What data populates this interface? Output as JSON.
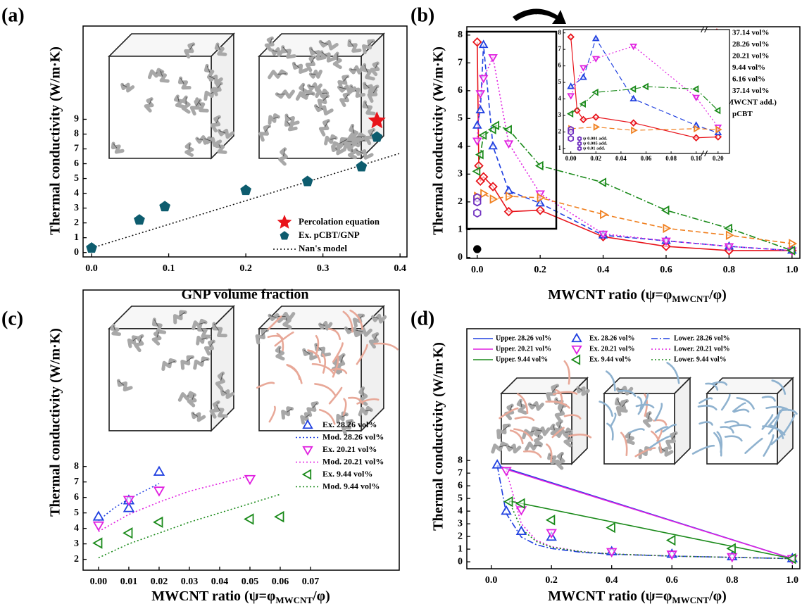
{
  "chart_data": [
    {
      "type": "scatter",
      "panel_label": "(a)",
      "xlabel": "GNP volume fraction",
      "ylabel": "Thermal conductivity (W/m·K)",
      "xlim": [
        -0.011,
        0.409
      ],
      "ylim": [
        -0.3,
        15.3
      ],
      "xticks": [
        {
          "value": 0,
          "label": "0.0"
        },
        {
          "value": 0.1,
          "label": "0.1"
        },
        {
          "value": 0.2,
          "label": "0.2"
        },
        {
          "value": 0.3,
          "label": "0.3"
        },
        {
          "value": 0.4,
          "label": "0.4"
        }
      ],
      "yticks": [
        0,
        1,
        2,
        3,
        4,
        5,
        6,
        7,
        8,
        9
      ],
      "legend_position": "lower right",
      "series": [
        {
          "name": "Percolation equation",
          "color": "#e8141b",
          "marker": "star",
          "filled": true,
          "dash": "none",
          "x": [
            0.37
          ],
          "values": [
            8.9
          ]
        },
        {
          "name": "Ex. pCBT/GNP",
          "color": "#0d5c6e",
          "marker": "pentagon",
          "filled": true,
          "dash": "none",
          "x": [
            0,
            0.062,
            0.095,
            0.2,
            0.28,
            0.35,
            0.37
          ],
          "values": [
            0.3,
            2.2,
            3.1,
            4.2,
            4.8,
            5.8,
            7.8
          ]
        },
        {
          "name": "Nan's model",
          "color": "#111111",
          "marker": "none",
          "filled": false,
          "dash": "dotted",
          "x": [
            0,
            0.4
          ],
          "values": [
            0.3,
            6.7
          ]
        }
      ]
    },
    {
      "type": "line",
      "panel_label": "(b)",
      "xlabel_parts": [
        "MWCNT ratio (ψ=φ",
        "MWCNT",
        "/φ)"
      ],
      "ylabel": "Thermal conductivity (W/m·K)",
      "xlim": [
        -0.033,
        1.025
      ],
      "ylim": [
        -0.03,
        8.3
      ],
      "xticks": [
        {
          "value": 0,
          "label": "0.0"
        },
        {
          "value": 0.2,
          "label": "0.2"
        },
        {
          "value": 0.4,
          "label": "0.4"
        },
        {
          "value": 0.6,
          "label": "0.6"
        },
        {
          "value": 0.8,
          "label": "0.8"
        },
        {
          "value": 1,
          "label": "1.0"
        }
      ],
      "yticks": [
        0,
        1,
        2,
        3,
        4,
        5,
        6,
        7,
        8
      ],
      "legend_position": "upper right",
      "series": [
        {
          "name": "37.14 vol%",
          "color": "#e8141b",
          "marker": "diamond",
          "filled": false,
          "dash": "solid",
          "x": [
            0,
            0.005,
            0.01,
            0.02,
            0.05,
            0.1,
            0.2,
            0.4,
            0.6,
            0.8,
            1.0
          ],
          "values": [
            7.75,
            3.3,
            2.75,
            2.9,
            2.55,
            1.65,
            1.7,
            0.75,
            0.4,
            0.25,
            0.25
          ]
        },
        {
          "name": "28.26 vol%",
          "color": "#2040e0",
          "marker": "tri-up",
          "filled": false,
          "dash": "dashed",
          "x": [
            0,
            0.01,
            0.02,
            0.05,
            0.1,
            0.2,
            0.4,
            0.6,
            0.8,
            1.0
          ],
          "values": [
            4.75,
            5.3,
            7.65,
            4.0,
            2.4,
            1.95,
            0.8,
            0.6,
            0.4,
            0.25
          ]
        },
        {
          "name": "20.21 vol%",
          "color": "#e020e0",
          "marker": "tri-down",
          "filled": false,
          "dash": "dotted",
          "x": [
            0,
            0.01,
            0.02,
            0.05,
            0.1,
            0.2,
            0.4,
            0.6,
            0.8,
            1.0
          ],
          "values": [
            4.2,
            5.9,
            6.45,
            7.2,
            4.1,
            2.3,
            0.85,
            0.6,
            0.4,
            0.25
          ]
        },
        {
          "name": "9.44 vol%",
          "color": "#1a8a1a",
          "marker": "tri-left",
          "filled": false,
          "dash": "dashdot",
          "x": [
            0,
            0.01,
            0.02,
            0.05,
            0.06,
            0.1,
            0.2,
            0.4,
            0.6,
            0.8,
            1.0
          ],
          "values": [
            3.1,
            3.7,
            4.4,
            4.6,
            4.75,
            4.6,
            3.3,
            2.7,
            1.7,
            1.05,
            0.25
          ]
        },
        {
          "name": "6.16 vol%",
          "color": "#f08020",
          "marker": "tri-right",
          "filled": false,
          "dash": "dashed",
          "x": [
            0,
            0.02,
            0.05,
            0.1,
            0.2,
            0.4,
            0.6,
            0.8,
            1.0
          ],
          "values": [
            2.2,
            2.3,
            2.1,
            2.2,
            2.15,
            1.55,
            1.05,
            0.8,
            0.5
          ]
        },
        {
          "name": "37.14 vol%",
          "name_note": "(MWCNT add.)",
          "color": "#7030c0",
          "marker": "hexagon",
          "filled": false,
          "dash": "none",
          "x": [
            0,
            0,
            0
          ],
          "values": [
            2.15,
            2.0,
            1.6
          ]
        },
        {
          "name": "pCBT",
          "color": "#000000",
          "marker": "circle",
          "filled": true,
          "dash": "none",
          "x": [
            0
          ],
          "values": [
            0.3
          ]
        }
      ],
      "inset": {
        "xlim": [
          -0.006,
          0.21
        ],
        "xbreak": [
          0.105,
          0.19
        ],
        "ylim": [
          0.7,
          8.2
        ],
        "xticks": [
          {
            "value": 0,
            "label": "0.00"
          },
          {
            "value": 0.02,
            "label": "0.02"
          },
          {
            "value": 0.04,
            "label": "0.04"
          },
          {
            "value": 0.06,
            "label": "0.06"
          },
          {
            "value": 0.08,
            "label": "0.08"
          },
          {
            "value": 0.1,
            "label": "0.10"
          },
          {
            "value": 0.2,
            "label": "0.20"
          }
        ],
        "yticks": [
          1,
          2,
          3,
          4,
          5,
          6,
          7,
          8
        ],
        "annotations": [
          "ψ 0.001 add.",
          "ψ 0.005 add.",
          "ψ 0.01 add."
        ]
      }
    },
    {
      "type": "scatter",
      "panel_label": "(c)",
      "xlabel_parts": [
        "MWCNT ratio (ψ=φ",
        "MWCNT",
        "/φ)"
      ],
      "ylabel": "Thermal conductivity (W/m·K)",
      "xlim": [
        -0.0051,
        0.0993
      ],
      "ylim": [
        1.3,
        19.4
      ],
      "xticks": [
        {
          "value": 0,
          "label": "0.00"
        },
        {
          "value": 0.01,
          "label": "0.01"
        },
        {
          "value": 0.02,
          "label": "0.02"
        },
        {
          "value": 0.03,
          "label": "0.03"
        },
        {
          "value": 0.04,
          "label": "0.04"
        },
        {
          "value": 0.05,
          "label": "0.05"
        },
        {
          "value": 0.06,
          "label": "0.06"
        },
        {
          "value": 0.07,
          "label": "0.07"
        }
      ],
      "yticks": [
        2,
        3,
        4,
        5,
        6,
        7,
        8
      ],
      "legend_position": "center right",
      "series": [
        {
          "name": "Ex. 28.26 vol%",
          "color": "#2040e0",
          "marker": "tri-up",
          "filled": false,
          "dash": "none",
          "x": [
            0,
            0.01,
            0.01,
            0.02
          ],
          "values": [
            4.75,
            5.3,
            5.8,
            7.65
          ]
        },
        {
          "name": "Mod. 28.26 vol%",
          "color": "#2040e0",
          "marker": "none",
          "filled": false,
          "dash": "dotted",
          "x": [
            0,
            0.005,
            0.01,
            0.015,
            0.02
          ],
          "values": [
            4.5,
            5.3,
            5.9,
            6.4,
            6.9
          ]
        },
        {
          "name": "Ex. 20.21 vol%",
          "color": "#e020e0",
          "marker": "tri-down",
          "filled": false,
          "dash": "none",
          "x": [
            0,
            0.01,
            0.02,
            0.05
          ],
          "values": [
            4.2,
            5.85,
            6.45,
            7.2
          ]
        },
        {
          "name": "Mod. 20.21 vol%",
          "color": "#e020e0",
          "marker": "none",
          "filled": false,
          "dash": "dotted",
          "x": [
            0,
            0.01,
            0.02,
            0.03,
            0.04,
            0.05
          ],
          "values": [
            3.8,
            4.9,
            5.7,
            6.4,
            6.9,
            7.4
          ]
        },
        {
          "name": "Ex. 9.44 vol%",
          "color": "#1a8a1a",
          "marker": "tri-left",
          "filled": false,
          "dash": "none",
          "x": [
            0,
            0.01,
            0.02,
            0.05,
            0.06
          ],
          "values": [
            3.05,
            3.7,
            4.4,
            4.6,
            4.75
          ]
        },
        {
          "name": "Mod. 9.44 vol%",
          "color": "#1a8a1a",
          "marker": "none",
          "filled": false,
          "dash": "dotted",
          "x": [
            0,
            0.01,
            0.02,
            0.03,
            0.04,
            0.05,
            0.06
          ],
          "values": [
            2.1,
            3.0,
            3.7,
            4.4,
            5.0,
            5.6,
            6.2
          ]
        }
      ]
    },
    {
      "type": "line",
      "panel_label": "(d)",
      "xlabel_parts": [
        "MWCNT ratio (ψ=φ",
        "MWCNT",
        "/φ)"
      ],
      "ylabel": "Thermal conductivity (W/m·K)",
      "xlim": [
        -0.081,
        1.025
      ],
      "ylim": [
        -0.55,
        18.4
      ],
      "xticks": [
        {
          "value": 0,
          "label": "0.0"
        },
        {
          "value": 0.2,
          "label": "0.2"
        },
        {
          "value": 0.4,
          "label": "0.4"
        },
        {
          "value": 0.6,
          "label": "0.6"
        },
        {
          "value": 0.8,
          "label": "0.8"
        },
        {
          "value": 1,
          "label": "1.0"
        }
      ],
      "yticks": [
        0,
        1,
        2,
        3,
        4,
        5,
        6,
        7,
        8
      ],
      "legend_position": "upper left",
      "series": [
        {
          "name": "Upper. 28.26 vol%",
          "color": "#2040e0",
          "marker": "none",
          "filled": false,
          "dash": "solid",
          "x": [
            0.02,
            1.0
          ],
          "values": [
            7.6,
            0.25
          ]
        },
        {
          "name": "Ex. 28.26 vol%",
          "color": "#2040e0",
          "marker": "tri-up",
          "filled": false,
          "dash": "none",
          "x": [
            0.02,
            0.05,
            0.1,
            0.2,
            0.4,
            0.6,
            0.8,
            1.0
          ],
          "values": [
            7.65,
            4.0,
            2.4,
            1.95,
            0.8,
            0.6,
            0.4,
            0.25
          ]
        },
        {
          "name": "Lower. 28.26 vol%",
          "color": "#2040e0",
          "marker": "none",
          "filled": false,
          "dash": "dashdot",
          "x": [
            0.02,
            0.05,
            0.1,
            0.15,
            0.2,
            0.3,
            0.4,
            0.6,
            0.8,
            1.0
          ],
          "values": [
            7.6,
            3.8,
            1.95,
            1.35,
            1.05,
            0.75,
            0.6,
            0.45,
            0.35,
            0.25
          ]
        },
        {
          "name": "Upper. 20.21 vol%",
          "color": "#e020e0",
          "marker": "none",
          "filled": false,
          "dash": "solid",
          "x": [
            0.05,
            1.0
          ],
          "values": [
            7.3,
            0.25
          ]
        },
        {
          "name": "Ex. 20.21 vol%",
          "color": "#e020e0",
          "marker": "tri-down",
          "filled": false,
          "dash": "none",
          "x": [
            0.05,
            0.1,
            0.2,
            0.4,
            0.6,
            0.8,
            1.0
          ],
          "values": [
            7.2,
            4.1,
            2.3,
            0.8,
            0.6,
            0.4,
            0.25
          ]
        },
        {
          "name": "Lower. 20.21 vol%",
          "color": "#e020e0",
          "marker": "none",
          "filled": false,
          "dash": "dotted",
          "x": [
            0.05,
            0.1,
            0.15,
            0.2,
            0.3,
            0.4,
            0.6,
            0.8,
            1.0
          ],
          "values": [
            7.2,
            3.0,
            1.7,
            1.2,
            0.8,
            0.62,
            0.45,
            0.35,
            0.25
          ]
        },
        {
          "name": "Upper. 9.44 vol%",
          "color": "#1a8a1a",
          "marker": "none",
          "filled": false,
          "dash": "solid",
          "x": [
            0.06,
            1.0
          ],
          "values": [
            4.8,
            0.25
          ]
        },
        {
          "name": "Ex. 9.44 vol%",
          "color": "#1a8a1a",
          "marker": "tri-left",
          "filled": false,
          "dash": "none",
          "x": [
            0.06,
            0.1,
            0.2,
            0.4,
            0.6,
            0.8,
            1.0
          ],
          "values": [
            4.75,
            4.6,
            3.3,
            2.7,
            1.7,
            1.05,
            0.25
          ]
        },
        {
          "name": "Lower. 9.44 vol%",
          "color": "#1a8a1a",
          "marker": "none",
          "filled": false,
          "dash": "dotted",
          "x": [
            0.06,
            0.1,
            0.15,
            0.2,
            0.3,
            0.4,
            0.6,
            0.8,
            1.0
          ],
          "values": [
            4.75,
            2.6,
            1.6,
            1.15,
            0.8,
            0.62,
            0.45,
            0.35,
            0.25
          ]
        }
      ]
    }
  ]
}
